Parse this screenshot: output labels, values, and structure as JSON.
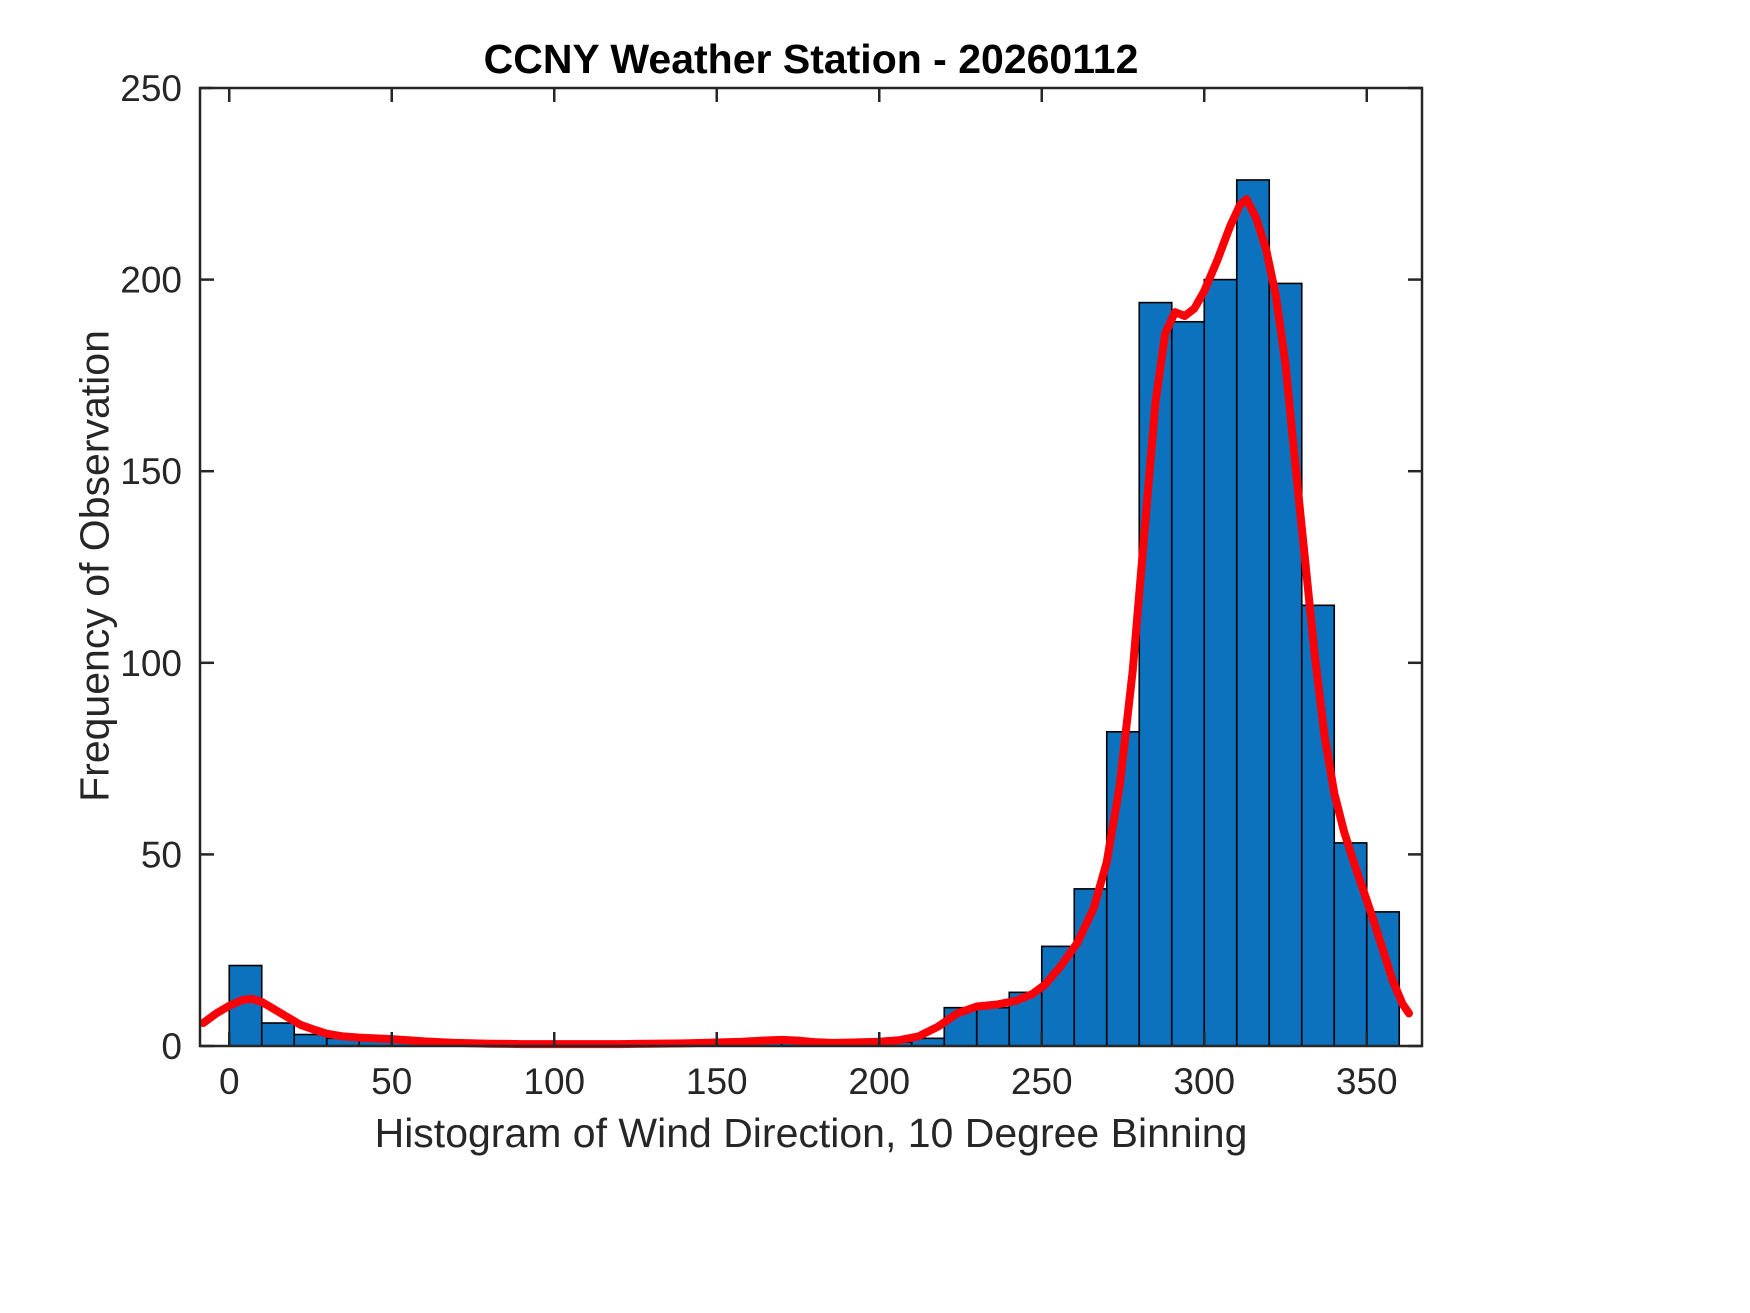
{
  "chart_data": {
    "type": "bar",
    "title": "CCNY Weather Station - 20260112",
    "xlabel": "Histogram of Wind Direction, 10 Degree Binning",
    "ylabel": "Frequency of Observation",
    "bin_width": 10,
    "bin_starts": [
      0,
      10,
      20,
      30,
      40,
      50,
      60,
      70,
      80,
      90,
      100,
      110,
      120,
      130,
      140,
      150,
      160,
      170,
      180,
      190,
      200,
      210,
      220,
      230,
      240,
      250,
      260,
      270,
      280,
      290,
      300,
      310,
      320,
      330,
      340,
      350
    ],
    "values": [
      21,
      6,
      3,
      2,
      2,
      1,
      1,
      1,
      0,
      0,
      0,
      0,
      0,
      1,
      1,
      1,
      1,
      1,
      1,
      0,
      1,
      2,
      10,
      10,
      14,
      26,
      41,
      82,
      194,
      189,
      200,
      226,
      199,
      115,
      53,
      35
    ],
    "xlim": [
      -9,
      367
    ],
    "ylim": [
      0,
      250
    ],
    "xticks": [
      0,
      50,
      100,
      150,
      200,
      250,
      300,
      350
    ],
    "yticks": [
      0,
      50,
      100,
      150,
      200,
      250
    ],
    "grid": false,
    "legend": "none",
    "bar_color": "#0c72bd",
    "bar_edge_color": "#000000",
    "axis_color": "#262626",
    "curve": {
      "name": "smoothed-density-fit",
      "color": "#fb0007",
      "x": [
        -8,
        -4,
        0,
        4,
        7,
        10,
        14,
        18,
        22,
        26,
        30,
        35,
        40,
        45,
        50,
        55,
        60,
        70,
        80,
        90,
        100,
        110,
        120,
        130,
        140,
        150,
        158,
        164,
        170,
        175,
        180,
        186,
        192,
        200,
        206,
        212,
        218,
        224,
        230,
        236,
        242,
        247,
        251,
        256,
        261,
        266,
        270,
        274,
        278,
        282,
        285,
        288,
        291,
        294,
        297,
        300,
        304,
        308,
        311,
        313,
        316,
        319,
        322,
        325,
        328,
        331,
        334,
        337,
        340,
        343,
        346,
        349,
        352,
        355,
        358,
        361,
        363
      ],
      "y": [
        6,
        8.5,
        10.5,
        12,
        12.3,
        11.5,
        9.5,
        7.5,
        5.5,
        4.3,
        3.2,
        2.5,
        2.2,
        2,
        1.8,
        1.5,
        1.2,
        0.8,
        0.6,
        0.5,
        0.5,
        0.5,
        0.5,
        0.6,
        0.7,
        0.9,
        1.1,
        1.4,
        1.6,
        1.4,
        1,
        0.8,
        0.9,
        1.1,
        1.5,
        2.5,
        5,
        8.5,
        10.3,
        10.8,
        11.8,
        13.5,
        16,
        21,
        27,
        36,
        48,
        68,
        98,
        138,
        168,
        186,
        191.5,
        190.5,
        192.5,
        197,
        205,
        214,
        219.5,
        221,
        216,
        208,
        196,
        178,
        152,
        127,
        102,
        81,
        66,
        56,
        48,
        40.5,
        33,
        25,
        17,
        11,
        8.5
      ]
    }
  }
}
